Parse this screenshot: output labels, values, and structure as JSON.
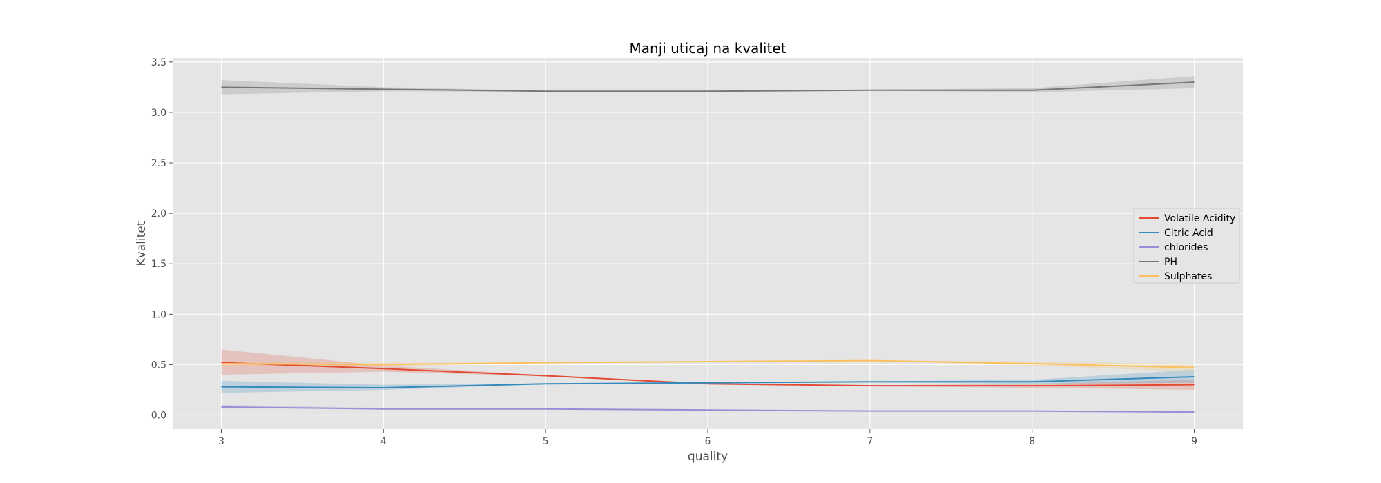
{
  "chart_data": {
    "type": "line",
    "title": "Manji uticaj na kvalitet",
    "xlabel": "quality",
    "ylabel": "Kvalitet",
    "x": [
      3,
      4,
      5,
      6,
      7,
      8,
      9
    ],
    "xlim": [
      2.7,
      9.3
    ],
    "ylim": [
      -0.14,
      3.54
    ],
    "xticks": [
      3,
      4,
      5,
      6,
      7,
      8,
      9
    ],
    "yticks": [
      0.0,
      0.5,
      1.0,
      1.5,
      2.0,
      2.5,
      3.0,
      3.5
    ],
    "ytick_labels": [
      "0.0",
      "0.5",
      "1.0",
      "1.5",
      "2.0",
      "2.5",
      "3.0",
      "3.5"
    ],
    "grid": true,
    "legend_position": "center-right",
    "series": [
      {
        "name": "Volatile Acidity",
        "color": "#E24A33",
        "values": [
          0.52,
          0.46,
          0.39,
          0.31,
          0.29,
          0.29,
          0.3
        ],
        "ci_low": [
          0.4,
          0.43,
          0.385,
          0.305,
          0.285,
          0.27,
          0.25
        ],
        "ci_high": [
          0.65,
          0.49,
          0.395,
          0.315,
          0.295,
          0.31,
          0.35
        ]
      },
      {
        "name": "Citric Acid",
        "color": "#348ABD",
        "values": [
          0.28,
          0.27,
          0.31,
          0.32,
          0.33,
          0.33,
          0.38
        ],
        "ci_low": [
          0.22,
          0.25,
          0.305,
          0.315,
          0.325,
          0.31,
          0.32
        ],
        "ci_high": [
          0.34,
          0.3,
          0.315,
          0.325,
          0.335,
          0.35,
          0.45
        ]
      },
      {
        "name": "chlorides",
        "color": "#988ED5",
        "values": [
          0.08,
          0.06,
          0.06,
          0.05,
          0.04,
          0.04,
          0.03
        ],
        "ci_low": [
          0.07,
          0.055,
          0.058,
          0.048,
          0.038,
          0.035,
          0.025
        ],
        "ci_high": [
          0.1,
          0.07,
          0.062,
          0.052,
          0.042,
          0.045,
          0.035
        ]
      },
      {
        "name": "PH",
        "color": "#777777",
        "values": [
          3.25,
          3.23,
          3.21,
          3.21,
          3.22,
          3.22,
          3.3
        ],
        "ci_low": [
          3.18,
          3.21,
          3.205,
          3.205,
          3.215,
          3.2,
          3.24
        ],
        "ci_high": [
          3.32,
          3.25,
          3.215,
          3.215,
          3.225,
          3.24,
          3.36
        ]
      },
      {
        "name": "Sulphates",
        "color": "#FBC15E",
        "values": [
          0.51,
          0.5,
          0.52,
          0.53,
          0.54,
          0.51,
          0.47
        ],
        "ci_low": [
          0.49,
          0.48,
          0.515,
          0.525,
          0.535,
          0.49,
          0.43
        ],
        "ci_high": [
          0.53,
          0.52,
          0.525,
          0.535,
          0.545,
          0.53,
          0.51
        ]
      }
    ]
  }
}
